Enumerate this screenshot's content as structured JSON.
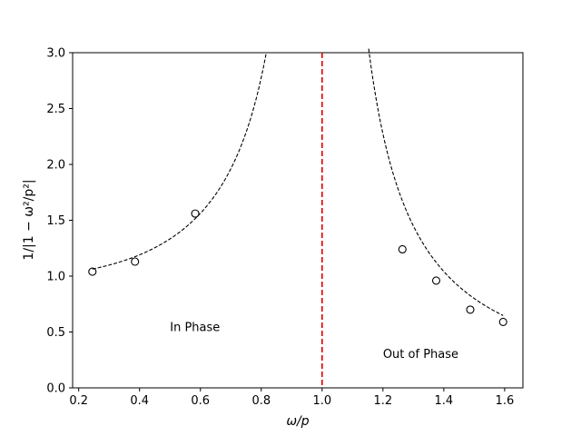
{
  "chart_data": {
    "type": "scatter",
    "title": "",
    "xlabel": "ω/p",
    "ylabel": "1/|1 − ω²/p²|",
    "xlim": [
      0.18,
      1.66
    ],
    "ylim": [
      0.0,
      3.0
    ],
    "xticks": [
      0.2,
      0.4,
      0.6,
      0.8,
      1.0,
      1.2,
      1.4,
      1.6
    ],
    "xtick_labels": [
      "0.2",
      "0.4",
      "0.6",
      "0.8",
      "1.0",
      "1.2",
      "1.4",
      "1.6"
    ],
    "yticks": [
      0.0,
      0.5,
      1.0,
      1.5,
      2.0,
      2.5,
      3.0
    ],
    "ytick_labels": [
      "0.0",
      "0.5",
      "1.0",
      "1.5",
      "2.0",
      "2.5",
      "3.0"
    ],
    "grid": false,
    "series": [
      {
        "kind": "points",
        "marker": "open-circle",
        "color": "#000000",
        "x": [
          0.245,
          0.385,
          0.583,
          1.264,
          1.375,
          1.487,
          1.595
        ],
        "y": [
          1.04,
          1.13,
          1.56,
          1.24,
          0.96,
          0.7,
          0.59
        ]
      },
      {
        "kind": "curve",
        "formula": "1/|1-x^2|",
        "style": "dashed",
        "color": "#000000",
        "segments": [
          [
            0.245,
            0.816
          ],
          [
            1.153,
            1.595
          ]
        ]
      }
    ],
    "vline": {
      "x": 1.0,
      "color": "#dd0000",
      "style": "dashed"
    },
    "annotations": [
      {
        "text": "In Phase",
        "x": 0.5,
        "y": 0.5
      },
      {
        "text": "Out of Phase",
        "x": 1.2,
        "y": 0.26
      }
    ]
  }
}
